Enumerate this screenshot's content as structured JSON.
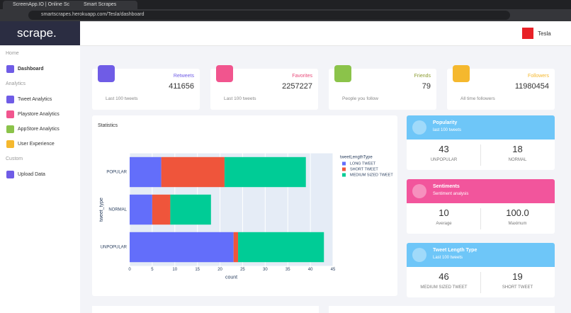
{
  "browser": {
    "tabs": [
      "ScreenApp.IO | Online Sc",
      "Smart Scrapes"
    ],
    "url": "smartscrapes.herokuapp.com/Tesla/dashboard"
  },
  "sidebar": {
    "logo": "scrape.",
    "sections": [
      {
        "title": "Home",
        "items": [
          "Dashboard"
        ]
      },
      {
        "title": "Analytics",
        "items": [
          "Tweet Analytics",
          "Playstore Analytics",
          "AppStore Analytics",
          "User Experience"
        ]
      },
      {
        "title": "Custom",
        "items": [
          "Upload Data"
        ]
      }
    ]
  },
  "header": {
    "user": "Tesla"
  },
  "stats": [
    {
      "label": "Retweets",
      "value": 411656,
      "footer": "Last 100 tweets"
    },
    {
      "label": "Favorites",
      "value": 2257227,
      "footer": "Last 100 tweets"
    },
    {
      "label": "Friends",
      "value": 79,
      "footer": "People you follow"
    },
    {
      "label": "Followers",
      "value": 11980454,
      "footer": "All time followers"
    }
  ],
  "chart_data": {
    "type": "bar",
    "orientation": "horizontal",
    "stacked": true,
    "title": "Statistics",
    "x_label": "count",
    "y_label": "tweet_type",
    "legend_title": "tweetLengthType",
    "categories": [
      "POPULAR",
      "NORMAL",
      "UNPOPULAR"
    ],
    "series": [
      {
        "name": "LONG TWEET",
        "color": "#636efa",
        "values": [
          7,
          5,
          23
        ]
      },
      {
        "name": "SHORT TWEET",
        "color": "#ef553b",
        "values": [
          14,
          4,
          1
        ]
      },
      {
        "name": "MEDIUM SIZED TWEET",
        "color": "#00cc96",
        "values": [
          18,
          9,
          19
        ]
      }
    ],
    "xlim": [
      0,
      45
    ],
    "xticks": [
      0,
      5,
      10,
      15,
      20,
      25,
      30,
      35,
      40,
      45
    ],
    "grid": true
  },
  "cards": [
    {
      "title": "Popularity",
      "subtitle": "last 100 tweets",
      "items": [
        {
          "value": "43",
          "label": "UNPOPULAR"
        },
        {
          "value": "18",
          "label": "NORMAL"
        }
      ]
    },
    {
      "title": "Sentiments",
      "subtitle": "Sentiment analysis",
      "items": [
        {
          "value": "10",
          "label": "Average"
        },
        {
          "value": "100.0",
          "label": "Maximum"
        }
      ]
    },
    {
      "title": "Tweet Length Type",
      "subtitle": "Last 100 tweets",
      "items": [
        {
          "value": "46",
          "label": "MEDIUM SIZED TWEET"
        },
        {
          "value": "19",
          "label": "SHORT TWEET"
        }
      ]
    }
  ]
}
